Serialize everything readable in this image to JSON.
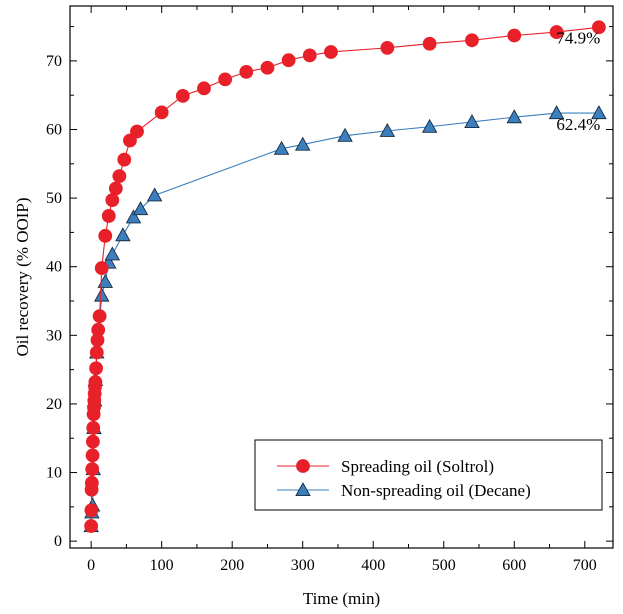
{
  "chart_data": {
    "type": "line",
    "title": "",
    "xlabel": "Time (min)",
    "ylabel": "Oil recovery (% OOIP)",
    "xlim": [
      -30,
      740
    ],
    "ylim": [
      -1,
      78
    ],
    "xticks": [
      0,
      100,
      200,
      300,
      400,
      500,
      600,
      700
    ],
    "yticks": [
      0,
      10,
      20,
      30,
      40,
      50,
      60,
      70
    ],
    "grid": false,
    "legend_position": "bottom-right",
    "series": [
      {
        "name": "Spreading oil (Soltrol)",
        "color": "#e8202a",
        "marker": "circle",
        "x": [
          0,
          0.3,
          0.6,
          1,
          1.5,
          2,
          2.5,
          3,
          3.5,
          4,
          4.5,
          5,
          5.5,
          6,
          7,
          8,
          9,
          10,
          12,
          15,
          20,
          25,
          30,
          35,
          40,
          47,
          55,
          65,
          100,
          130,
          160,
          190,
          220,
          250,
          280,
          310,
          340,
          420,
          480,
          540,
          600,
          660,
          720
        ],
        "y": [
          2.2,
          4.5,
          7.5,
          8.5,
          10.5,
          12.5,
          14.5,
          16.5,
          18.5,
          19.5,
          20.5,
          21.5,
          22.5,
          23.2,
          25.2,
          27.5,
          29.3,
          30.8,
          32.8,
          39.8,
          44.5,
          47.4,
          49.7,
          51.4,
          53.2,
          55.6,
          58.4,
          59.7,
          62.5,
          64.9,
          66.0,
          67.3,
          68.4,
          69.0,
          70.1,
          70.8,
          71.3,
          71.9,
          72.5,
          73.0,
          73.7,
          74.2,
          74.9
        ]
      },
      {
        "name": "Non-spreading oil (Decane)",
        "color": "#3b7fbf",
        "marker": "triangle",
        "x": [
          0,
          1,
          2,
          3,
          4,
          5,
          6,
          8,
          15,
          20,
          25,
          30,
          45,
          60,
          70,
          90,
          270,
          300,
          360,
          420,
          480,
          540,
          600,
          660,
          720
        ],
        "y": [
          2.2,
          4.2,
          5.2,
          10.5,
          16.5,
          20.5,
          23.5,
          27.5,
          35.8,
          37.8,
          40.6,
          41.8,
          44.6,
          47.2,
          48.4,
          50.4,
          57.2,
          57.8,
          59.1,
          59.8,
          60.4,
          61.1,
          61.8,
          62.4,
          62.4
        ]
      }
    ],
    "annotations": [
      {
        "text": "74.9%",
        "x": 722,
        "y": 72.5,
        "anchor": "end"
      },
      {
        "text": "62.4%",
        "x": 722,
        "y": 59.9,
        "anchor": "end"
      }
    ]
  }
}
